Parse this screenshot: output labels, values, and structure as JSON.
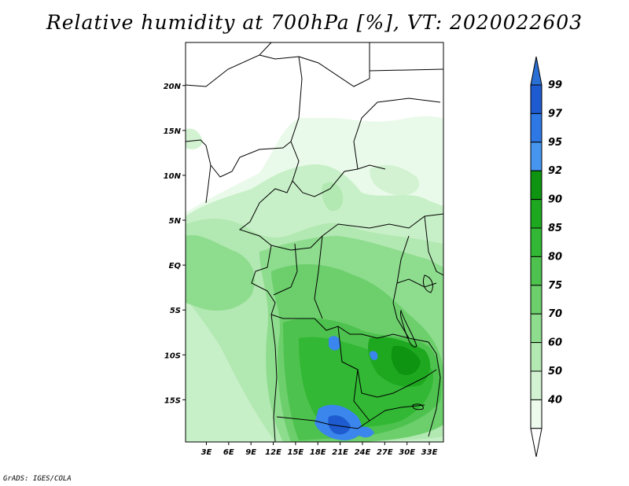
{
  "title": "Relative humidity at 700hPa [%], VT: 2020022603",
  "credit": "GrADS: IGES/COLA",
  "map": {
    "lat_labels": [
      "20N",
      "15N",
      "10N",
      "5N",
      "EQ",
      "5S",
      "10S",
      "15S"
    ],
    "lat_values": [
      20,
      15,
      10,
      5,
      0,
      -5,
      -10,
      -15
    ],
    "lon_labels": [
      "3E",
      "6E",
      "9E",
      "12E",
      "15E",
      "18E",
      "21E",
      "24E",
      "27E",
      "30E",
      "33E"
    ],
    "lon_values": [
      3,
      6,
      9,
      12,
      15,
      18,
      21,
      24,
      27,
      30,
      33
    ],
    "lat_range": [
      -19.7,
      24.8
    ],
    "lon_range": [
      0.2,
      34.9
    ]
  },
  "colorbar": {
    "levels": [
      "99",
      "97",
      "95",
      "92",
      "90",
      "85",
      "80",
      "75",
      "70",
      "60",
      "50",
      "40"
    ],
    "colors": [
      "#1e5bd0",
      "#2e78e6",
      "#4696f0",
      "#0e9410",
      "#1ea820",
      "#32b834",
      "#4ec24e",
      "#6ccf6c",
      "#8edc8e",
      "#b2e8b2",
      "#d2f2d2",
      "#edfbed"
    ],
    "top_arrow_color": "#2a6fd4",
    "bottom_arrow_color": "#ffffff"
  },
  "colors": {
    "very_light": "#eafaea",
    "light": "#c8f0c8",
    "mid": "#9ee29e",
    "green": "#5fcc5f",
    "dark": "#2fb02f",
    "darker": "#1a9a1a",
    "blue": "#3a86ec",
    "deep_blue": "#1e5bd0"
  }
}
